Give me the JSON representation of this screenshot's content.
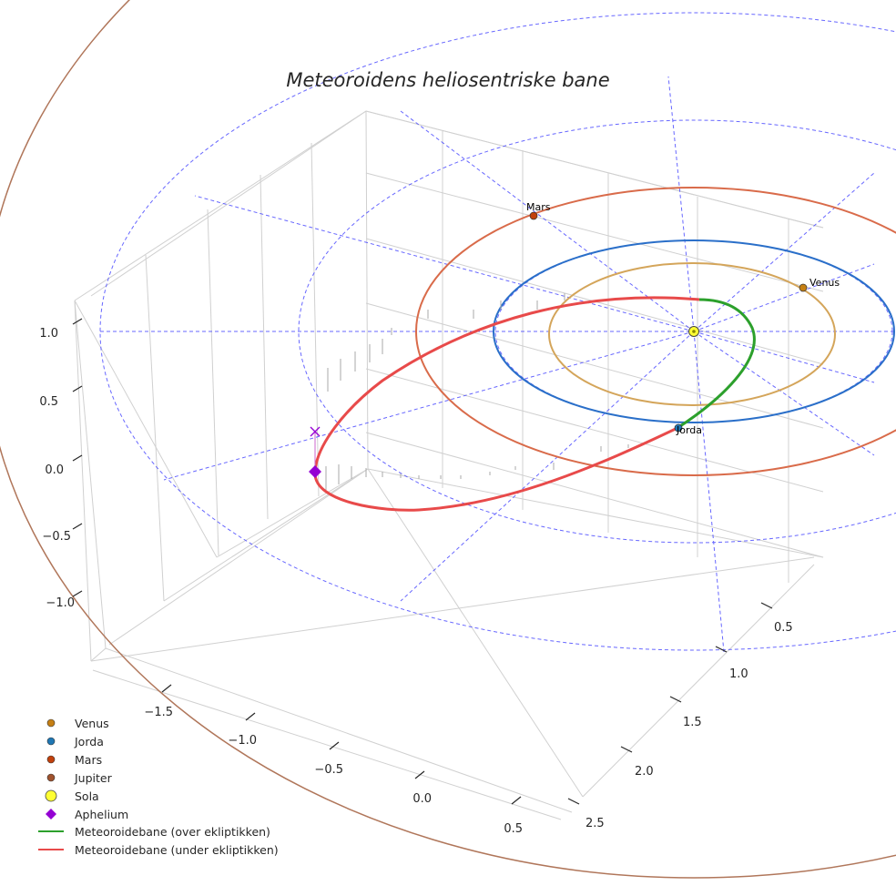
{
  "chart_data": {
    "type": "line",
    "title": "Meteoroidens heliosentriske bane",
    "projection": "3d",
    "axes": {
      "x": {
        "ticks": [
          "−1.5",
          "−1.0",
          "−0.5",
          "0.0",
          "0.5"
        ]
      },
      "y": {
        "ticks": [
          "0.5",
          "1.0",
          "1.5",
          "2.0",
          "2.5"
        ]
      },
      "z": {
        "ticks": [
          "1.0",
          "0.5",
          "0.0",
          "−0.5",
          "−1.0"
        ]
      }
    },
    "grid": true,
    "legend_position": "bottom-left",
    "planet_labels": [
      {
        "name": "Mars",
        "color": "#c2410c"
      },
      {
        "name": "Venus",
        "color": "#c57f14"
      },
      {
        "name": "Jorda",
        "color": "#1f77b4"
      }
    ],
    "series": [
      {
        "name": "Venus",
        "kind": "planet",
        "color": "#c57f14",
        "orbit_color": "#d4a55a"
      },
      {
        "name": "Jorda",
        "kind": "planet",
        "color": "#1f77b4",
        "orbit_color": "#2a6fc9"
      },
      {
        "name": "Mars",
        "kind": "planet",
        "color": "#c2410c",
        "orbit_color": "#d96b4a"
      },
      {
        "name": "Jupiter",
        "kind": "planet",
        "color": "#a0522d",
        "orbit_color": "#b0765a"
      },
      {
        "name": "Sola",
        "kind": "sun",
        "color": "#ffff33"
      },
      {
        "name": "Aphelium",
        "kind": "marker",
        "color": "#9400d3"
      },
      {
        "name": "Meteoroidebane (over ekliptikken)",
        "kind": "line",
        "color": "#2ca02c"
      },
      {
        "name": "Meteoroidebane (under ekliptikken)",
        "kind": "line",
        "color": "#e84a4a"
      }
    ]
  }
}
